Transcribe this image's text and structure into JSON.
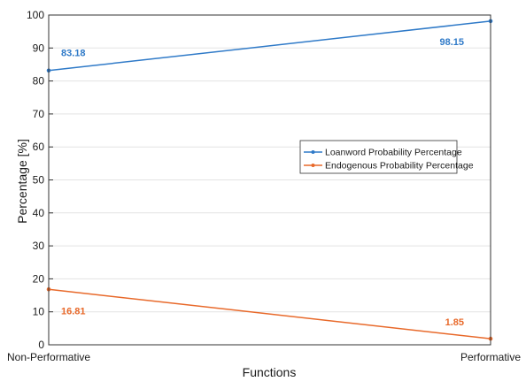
{
  "chart_data": {
    "type": "line",
    "categories": [
      "Non-Performative",
      "Performative"
    ],
    "series": [
      {
        "name": "Loanword Probability Percentage",
        "values": [
          83.18,
          98.15
        ],
        "color": "#2f7ac8",
        "labels": [
          "83.18",
          "98.15"
        ]
      },
      {
        "name": "Endogenous Probability Percentage",
        "values": [
          16.81,
          1.85
        ],
        "color": "#e8692a",
        "labels": [
          "16.81",
          "1.85"
        ]
      }
    ],
    "xlabel": "Functions",
    "ylabel": "Percentage [%]",
    "ylim": [
      0,
      100
    ],
    "yticks": [
      0,
      10,
      20,
      30,
      40,
      50,
      60,
      70,
      80,
      90,
      100
    ],
    "grid": true,
    "legend_position": "center-right"
  }
}
